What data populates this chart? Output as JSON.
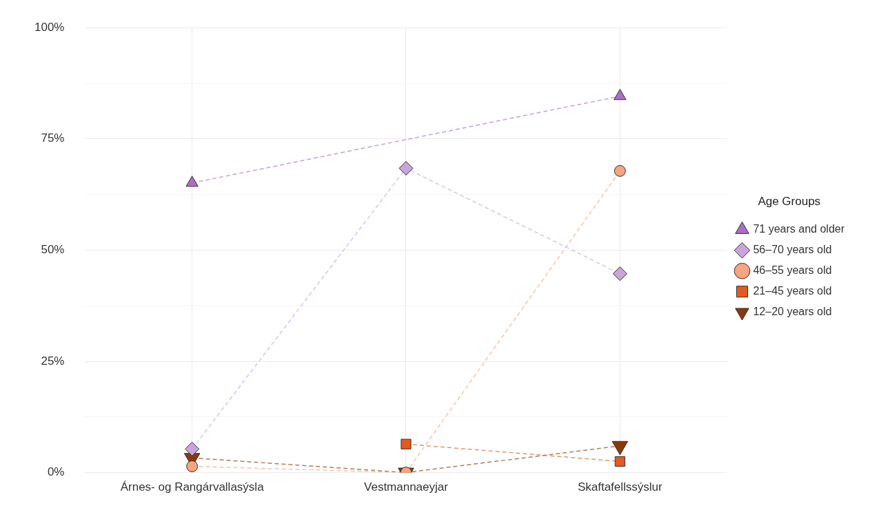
{
  "chart_data": {
    "type": "line",
    "categories": [
      "Árnes- og Rangárvallasýsla",
      "Vestmannaeyjar",
      "Skaftafellssýslur"
    ],
    "ylim": [
      0,
      100
    ],
    "yticks": [
      {
        "value": 0,
        "label": "0%"
      },
      {
        "value": 12.5,
        "label": null
      },
      {
        "value": 25,
        "label": "25%"
      },
      {
        "value": 37.5,
        "label": null
      },
      {
        "value": 50,
        "label": "50%"
      },
      {
        "value": 62.5,
        "label": null
      },
      {
        "value": 75,
        "label": "75%"
      },
      {
        "value": 87.5,
        "label": null
      },
      {
        "value": 100,
        "label": "100%"
      }
    ],
    "grid": true,
    "legend": "right",
    "legend_title": "Age Groups",
    "line_style": "dashed",
    "series": [
      {
        "name": "71 years and older",
        "color": "#a96fc6",
        "marker": "triangle",
        "values": [
          65.1,
          null,
          84.6
        ]
      },
      {
        "name": "56–70 years old",
        "color": "#c7a6da",
        "marker": "diamond",
        "values": [
          5.3,
          68.4,
          44.7
        ]
      },
      {
        "name": "46–55 years old",
        "color": "#f4a582",
        "marker": "circle",
        "values": [
          1.4,
          0,
          67.8
        ]
      },
      {
        "name": "21–45 years old",
        "color": "#e35a22",
        "marker": "square",
        "values": [
          null,
          6.4,
          2.5
        ]
      },
      {
        "name": "12–20 years old",
        "color": "#8a3a0a",
        "marker": "triangle-down",
        "values": [
          3.3,
          0,
          6
        ]
      }
    ]
  }
}
